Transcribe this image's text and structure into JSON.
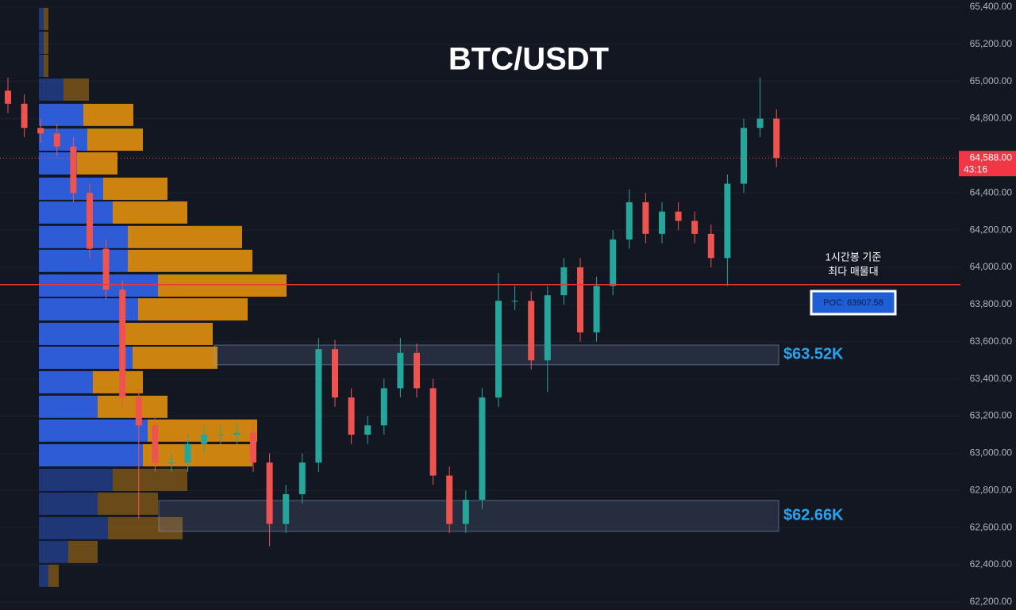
{
  "chart_data": {
    "type": "candlestick",
    "title": "BTC/USDT",
    "open": [
      64950,
      64880,
      64750,
      64720,
      64650,
      64400,
      64100,
      63880,
      63300,
      63150,
      62950,
      62950,
      63050,
      63100,
      63100,
      63110,
      62950,
      62620,
      62780,
      62950,
      63560,
      63300,
      63100,
      63150,
      63350,
      63540,
      63350,
      62880,
      62620,
      62750,
      63300,
      63820,
      63820,
      63500,
      63850,
      64000,
      63650,
      63900,
      64150,
      64350,
      64180,
      64300,
      64250,
      64180,
      64050,
      64450,
      64750,
      64800
    ],
    "high": [
      65020,
      64930,
      64800,
      64770,
      64700,
      64450,
      64150,
      63930,
      63350,
      63200,
      63000,
      63100,
      63150,
      63150,
      63160,
      63160,
      63000,
      62830,
      63000,
      63620,
      63610,
      63350,
      63200,
      63400,
      63620,
      63590,
      63400,
      62930,
      62800,
      63350,
      63970,
      63900,
      63870,
      63900,
      64050,
      64050,
      63950,
      64200,
      64420,
      64400,
      64350,
      64350,
      64300,
      64230,
      64500,
      64800,
      65020,
      64850
    ],
    "low": [
      64830,
      64700,
      64670,
      64600,
      64350,
      64050,
      63830,
      63250,
      62650,
      62900,
      62900,
      62900,
      63000,
      63050,
      63050,
      62900,
      62500,
      62570,
      62730,
      62900,
      63250,
      63050,
      63050,
      63100,
      63300,
      63300,
      62830,
      62570,
      62570,
      62700,
      63250,
      63770,
      63450,
      63330,
      63800,
      63600,
      63600,
      63850,
      64100,
      64130,
      64130,
      64200,
      64130,
      64000,
      63900,
      64400,
      64700,
      64540
    ],
    "close": [
      64880,
      64750,
      64720,
      64650,
      64400,
      64100,
      63880,
      63300,
      63150,
      62950,
      62950,
      63050,
      63100,
      63100,
      63110,
      62950,
      62620,
      62780,
      62950,
      63560,
      63300,
      63100,
      63150,
      63350,
      63540,
      63350,
      62880,
      62620,
      62750,
      63300,
      63820,
      63820,
      63500,
      63850,
      64000,
      63650,
      63900,
      64150,
      64350,
      64180,
      64300,
      64250,
      64180,
      64050,
      64450,
      64750,
      64800,
      64588
    ],
    "up_color": "#26a69a",
    "down_color": "#ef5350",
    "ylim": [
      62157,
      65438
    ],
    "yticks": [
      {
        "value": 62200,
        "label": "62,200.00"
      },
      {
        "value": 62400,
        "label": "62,400.00"
      },
      {
        "value": 62600,
        "label": "62,600.00"
      },
      {
        "value": 62800,
        "label": "62,800.00"
      },
      {
        "value": 63000,
        "label": "63,000.00"
      },
      {
        "value": 63200,
        "label": "63,200.00"
      },
      {
        "value": 63400,
        "label": "63,400.00"
      },
      {
        "value": 63600,
        "label": "63,600.00"
      },
      {
        "value": 63800,
        "label": "63,800.00"
      },
      {
        "value": 64000,
        "label": "64,000.00"
      },
      {
        "value": 64200,
        "label": "64,200.00"
      },
      {
        "value": 64400,
        "label": "64,400.00"
      },
      {
        "value": 64600,
        "label": "64,600.00"
      },
      {
        "value": 64800,
        "label": "64,800.00"
      },
      {
        "value": 65000,
        "label": "65,000.00"
      },
      {
        "value": 65200,
        "label": "65,200.00"
      },
      {
        "value": 65400,
        "label": "65,400.00"
      }
    ],
    "grid": true,
    "last_price": {
      "value": 64588,
      "label": "64,588.00"
    },
    "countdown": "43:16",
    "poc": {
      "value": 63907.58,
      "label": "POC: 63907.58",
      "color": "#e53935"
    },
    "annotation": [
      "1시간봉 기준",
      "최다 매물대"
    ],
    "zones": [
      {
        "label": "$63.52K",
        "low": 63476,
        "high": 63582
      },
      {
        "label": "$62.66K",
        "low": 62580,
        "high": 62746
      }
    ],
    "volume_profile": {
      "prices": [
        65336,
        65208,
        65084,
        64956,
        64820,
        64687,
        64559,
        64423,
        64295,
        64163,
        64035,
        63902,
        63774,
        63642,
        63514,
        63382,
        63250,
        63122,
        62989,
        62857,
        62729,
        62597,
        62469,
        62341
      ],
      "buy": [
        6,
        6,
        6,
        31,
        56,
        61,
        48,
        81,
        93,
        112,
        112,
        150,
        125,
        107,
        118,
        68,
        74,
        137,
        131,
        93,
        74,
        87,
        37,
        12
      ],
      "sell": [
        6,
        6,
        6,
        32,
        63,
        70,
        51,
        81,
        94,
        144,
        157,
        162,
        138,
        112,
        107,
        63,
        88,
        138,
        138,
        94,
        76,
        94,
        37,
        13
      ],
      "buy_color": "#2f5fe0",
      "sell_color": "#d68910"
    }
  }
}
